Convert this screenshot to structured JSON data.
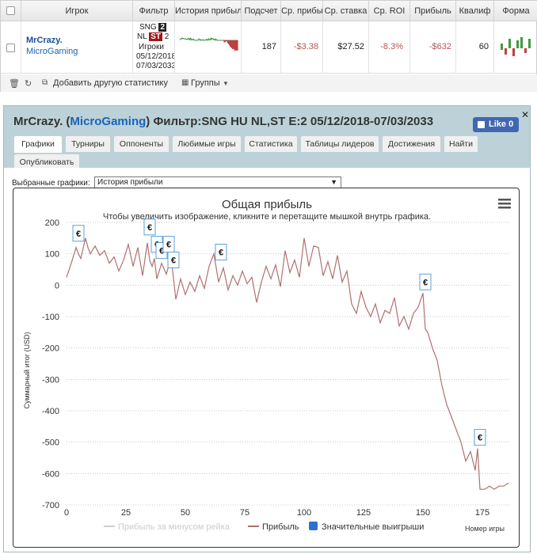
{
  "table": {
    "headers": [
      "Игрок",
      "Фильтр",
      "История прибыль",
      "Подсчет",
      "Ср. прибыль",
      "Ср. ставка",
      "Ср. ROI",
      "Прибыль",
      "Квалиф",
      "Форма"
    ],
    "row": {
      "player_name": "MrCrazy.",
      "player_site": "MicroGaming",
      "filter_line1": "SNG",
      "filter_badge1": "2",
      "filter_line2": "NL",
      "filter_badge2": "ST",
      "filter_badge3": "2",
      "filter_line3": "Игроки",
      "filter_date1": "05/12/2018",
      "filter_date2": "07/03/2033",
      "count": "187",
      "avg_profit": "-$3.38",
      "avg_stake": "$27.52",
      "avg_roi": "-8.3%",
      "profit": "-$632",
      "qualif": "60"
    },
    "footer": {
      "add_stats": "Добавить другую статистику",
      "groups": "Группы"
    }
  },
  "panel": {
    "title_player": "MrCrazy.",
    "title_site": "MicroGaming",
    "title_filter": "Фильтр:SNG HU NL,ST E:2 05/12/2018-07/03/2033",
    "like": "Like 0",
    "tabs": [
      "Графики",
      "Турниры",
      "Оппоненты",
      "Любимые игры",
      "Статистика",
      "Таблицы лидеров",
      "Достижения",
      "Найти",
      "Опубликовать"
    ],
    "select_label": "Выбранные графики:",
    "select_value": "История прибыли"
  },
  "colors": {
    "profit_line": "#b07070",
    "highlight": "#2f6fcf",
    "negative": "#b35555"
  },
  "chart_data": {
    "type": "line",
    "title": "Общая прибыль",
    "subtitle": "Чтобы увеличить изображение, кликните и перетащите мышкой внутрь графика.",
    "ylabel": "Суммарный итог (USD)",
    "xlabel": "Номер игры",
    "ylim": [
      -700,
      200
    ],
    "xlim": [
      0,
      187
    ],
    "y_ticks": [
      200,
      100,
      0,
      -100,
      -200,
      -300,
      -400,
      -500,
      -600,
      -700
    ],
    "x_ticks": [
      0,
      25,
      50,
      75,
      100,
      125,
      150,
      175
    ],
    "series": [
      {
        "name": "Прибыль за минусом рейка",
        "values": []
      },
      {
        "name": "Прибыль",
        "x": [
          0,
          2,
          4,
          5,
          6,
          8,
          9,
          10,
          12,
          14,
          16,
          18,
          20,
          22,
          24,
          26,
          28,
          30,
          32,
          34,
          35,
          36,
          37,
          38,
          40,
          42,
          44,
          46,
          48,
          50,
          52,
          54,
          56,
          58,
          60,
          62,
          64,
          66,
          68,
          70,
          72,
          74,
          76,
          78,
          80,
          82,
          84,
          86,
          88,
          90,
          92,
          94,
          96,
          98,
          100,
          102,
          104,
          106,
          108,
          110,
          112,
          114,
          116,
          118,
          120,
          122,
          124,
          126,
          128,
          130,
          132,
          134,
          136,
          138,
          140,
          142,
          144,
          146,
          148,
          150,
          151,
          152,
          154,
          156,
          158,
          160,
          162,
          164,
          166,
          168,
          170,
          172,
          173,
          174,
          176,
          178,
          180,
          182,
          184,
          186
        ],
        "values": [
          25,
          70,
          120,
          100,
          85,
          150,
          120,
          100,
          125,
          95,
          110,
          70,
          90,
          45,
          80,
          130,
          60,
          120,
          30,
          135,
          80,
          60,
          85,
          20,
          70,
          35,
          90,
          -45,
          20,
          -30,
          10,
          -20,
          30,
          -10,
          60,
          100,
          10,
          55,
          -15,
          30,
          0,
          45,
          5,
          25,
          -55,
          10,
          60,
          20,
          65,
          -5,
          110,
          40,
          80,
          25,
          150,
          60,
          125,
          120,
          30,
          75,
          20,
          95,
          10,
          45,
          -60,
          -90,
          -20,
          -70,
          -100,
          -60,
          -120,
          -80,
          -90,
          -40,
          -130,
          -100,
          -140,
          -90,
          -70,
          -25,
          -140,
          -150,
          -200,
          -240,
          -320,
          -380,
          -420,
          -460,
          -500,
          -560,
          -530,
          -590,
          -520,
          -650,
          -650,
          -640,
          -650,
          -640,
          -640,
          -630
        ]
      },
      {
        "name": "Значительные выигрыши",
        "x": [
          5,
          35,
          38,
          40,
          43,
          45,
          65,
          151,
          174
        ],
        "values": [
          130,
          150,
          95,
          75,
          95,
          45,
          70,
          -25,
          -520
        ]
      }
    ],
    "legend_position": "bottom",
    "grid": true
  }
}
